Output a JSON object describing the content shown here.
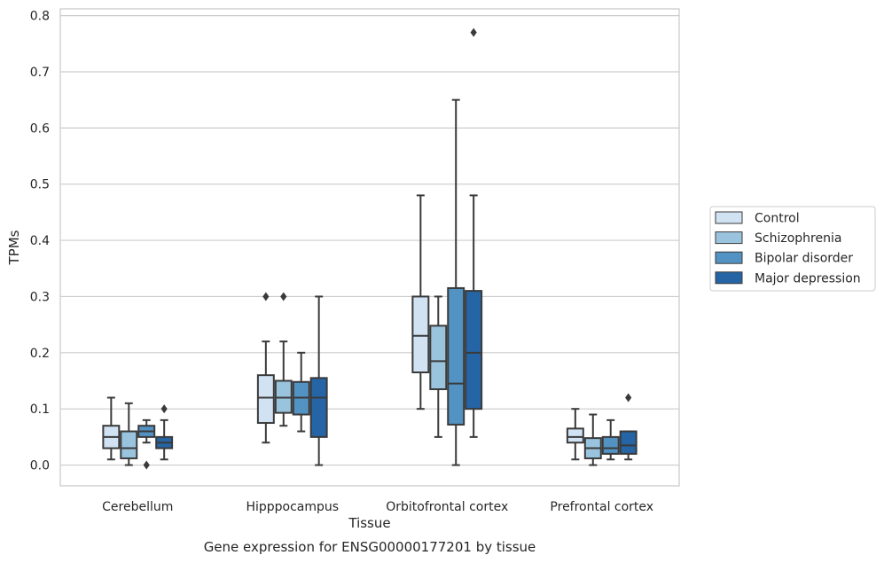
{
  "chart_data": {
    "type": "box",
    "title": "",
    "caption": "Gene expression for ENSG00000177201 by tissue",
    "xlabel": "Tissue",
    "ylabel": "TPMs",
    "ylim": [
      -0.037,
      0.812
    ],
    "yticks": [
      "0.0",
      "0.1",
      "0.2",
      "0.3",
      "0.4",
      "0.5",
      "0.6",
      "0.7",
      "0.8"
    ],
    "grid": "horizontal",
    "legend_position": "right",
    "categories": [
      "Cerebellum",
      "Hipppocampus",
      "Orbitofrontal cortex",
      "Prefrontal cortex"
    ],
    "series": [
      {
        "name": "Control",
        "color": "#d1e2f3",
        "boxes": [
          {
            "whisker_low": 0.01,
            "q1": 0.03,
            "median": 0.05,
            "q3": 0.07,
            "whisker_high": 0.12,
            "outliers": []
          },
          {
            "whisker_low": 0.04,
            "q1": 0.075,
            "median": 0.12,
            "q3": 0.16,
            "whisker_high": 0.22,
            "outliers": [
              0.3
            ]
          },
          {
            "whisker_low": 0.1,
            "q1": 0.165,
            "median": 0.23,
            "q3": 0.3,
            "whisker_high": 0.48,
            "outliers": []
          },
          {
            "whisker_low": 0.01,
            "q1": 0.04,
            "median": 0.05,
            "q3": 0.065,
            "whisker_high": 0.1,
            "outliers": []
          }
        ]
      },
      {
        "name": "Schizophrenia",
        "color": "#9ac4de",
        "boxes": [
          {
            "whisker_low": 0.0,
            "q1": 0.012,
            "median": 0.03,
            "q3": 0.06,
            "whisker_high": 0.11,
            "outliers": []
          },
          {
            "whisker_low": 0.07,
            "q1": 0.093,
            "median": 0.12,
            "q3": 0.15,
            "whisker_high": 0.22,
            "outliers": [
              0.3
            ]
          },
          {
            "whisker_low": 0.05,
            "q1": 0.135,
            "median": 0.185,
            "q3": 0.248,
            "whisker_high": 0.3,
            "outliers": []
          },
          {
            "whisker_low": 0.0,
            "q1": 0.012,
            "median": 0.03,
            "q3": 0.048,
            "whisker_high": 0.09,
            "outliers": []
          }
        ]
      },
      {
        "name": "Bipolar disorder",
        "color": "#5393c3",
        "boxes": [
          {
            "whisker_low": 0.04,
            "q1": 0.05,
            "median": 0.06,
            "q3": 0.07,
            "whisker_high": 0.08,
            "outliers": [
              0.0
            ]
          },
          {
            "whisker_low": 0.06,
            "q1": 0.09,
            "median": 0.12,
            "q3": 0.148,
            "whisker_high": 0.2,
            "outliers": []
          },
          {
            "whisker_low": 0.0,
            "q1": 0.072,
            "median": 0.145,
            "q3": 0.315,
            "whisker_high": 0.65,
            "outliers": []
          },
          {
            "whisker_low": 0.01,
            "q1": 0.02,
            "median": 0.03,
            "q3": 0.05,
            "whisker_high": 0.08,
            "outliers": []
          }
        ]
      },
      {
        "name": "Major depression",
        "color": "#2565a5",
        "boxes": [
          {
            "whisker_low": 0.01,
            "q1": 0.03,
            "median": 0.04,
            "q3": 0.05,
            "whisker_high": 0.08,
            "outliers": [
              0.1
            ]
          },
          {
            "whisker_low": 0.0,
            "q1": 0.05,
            "median": 0.12,
            "q3": 0.155,
            "whisker_high": 0.3,
            "outliers": []
          },
          {
            "whisker_low": 0.05,
            "q1": 0.1,
            "median": 0.2,
            "q3": 0.31,
            "whisker_high": 0.48,
            "outliers": [
              0.77
            ]
          },
          {
            "whisker_low": 0.01,
            "q1": 0.02,
            "median": 0.035,
            "q3": 0.06,
            "whisker_high": 0.06,
            "outliers": [
              0.12
            ]
          }
        ]
      }
    ]
  }
}
